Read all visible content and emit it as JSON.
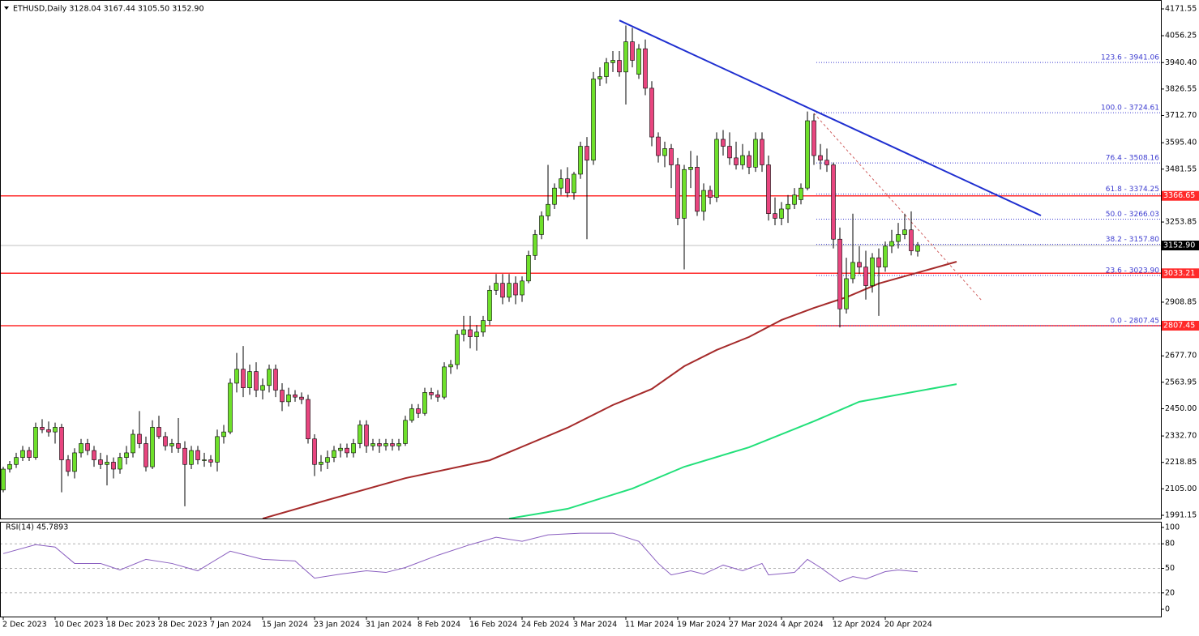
{
  "chart_data": {
    "type": "candlestick",
    "title": "ETHUSD,Daily  3128.04 3167.44 3105.50 3152.90",
    "categories": [
      "2 Dec 2023",
      null,
      null,
      null,
      null,
      null,
      null,
      null,
      "10 Dec 2023",
      null,
      null,
      null,
      null,
      null,
      null,
      null,
      "18 Dec 2023",
      null,
      null,
      null,
      null,
      null,
      null,
      null,
      "28 Dec 2023",
      null,
      null,
      null,
      null,
      null,
      null,
      null,
      "7 Jan 2024",
      null,
      null,
      null,
      null,
      null,
      null,
      null,
      "15 Jan 2024",
      null,
      null,
      null,
      null,
      null,
      null,
      null,
      "23 Jan 2024",
      null,
      null,
      null,
      null,
      null,
      null,
      null,
      "31 Jan 2024",
      null,
      null,
      null,
      null,
      null,
      null,
      null,
      "8 Feb 2024",
      null,
      null,
      null,
      null,
      null,
      null,
      null,
      "16 Feb 2024",
      null,
      null,
      null,
      null,
      null,
      null,
      null,
      "24 Feb 2024",
      null,
      null,
      null,
      null,
      null,
      null,
      null,
      "3 Mar 2024",
      null,
      null,
      null,
      null,
      null,
      null,
      null,
      "11 Mar 2024",
      null,
      null,
      null,
      null,
      null,
      null,
      null,
      "19 Mar 2024",
      null,
      null,
      null,
      null,
      null,
      null,
      null,
      "27 Mar 2024",
      null,
      null,
      null,
      null,
      null,
      null,
      null,
      "4 Apr 2024",
      null,
      null,
      null,
      null,
      null,
      null,
      null,
      "12 Apr 2024",
      null,
      null,
      null,
      null,
      null,
      null,
      null,
      "20 Apr 2024",
      null,
      null,
      null,
      null,
      null
    ],
    "candles": [
      [
        2100,
        2200,
        2090,
        2190
      ],
      [
        2190,
        2225,
        2175,
        2210
      ],
      [
        2210,
        2260,
        2195,
        2240
      ],
      [
        2240,
        2290,
        2225,
        2270
      ],
      [
        2270,
        2285,
        2225,
        2240
      ],
      [
        2240,
        2390,
        2230,
        2370
      ],
      [
        2370,
        2405,
        2345,
        2360
      ],
      [
        2360,
        2395,
        2330,
        2350
      ],
      [
        2350,
        2390,
        2300,
        2370
      ],
      [
        2370,
        2385,
        2090,
        2230
      ],
      [
        2230,
        2250,
        2160,
        2180
      ],
      [
        2180,
        2280,
        2150,
        2260
      ],
      [
        2260,
        2320,
        2240,
        2300
      ],
      [
        2300,
        2320,
        2250,
        2270
      ],
      [
        2270,
        2290,
        2200,
        2230
      ],
      [
        2230,
        2260,
        2190,
        2210
      ],
      [
        2210,
        2250,
        2120,
        2220
      ],
      [
        2220,
        2240,
        2150,
        2190
      ],
      [
        2190,
        2260,
        2170,
        2240
      ],
      [
        2240,
        2290,
        2210,
        2260
      ],
      [
        2260,
        2360,
        2240,
        2340
      ],
      [
        2340,
        2440,
        2280,
        2300
      ],
      [
        2300,
        2330,
        2180,
        2200
      ],
      [
        2200,
        2400,
        2190,
        2370
      ],
      [
        2370,
        2420,
        2320,
        2330
      ],
      [
        2330,
        2350,
        2270,
        2290
      ],
      [
        2290,
        2320,
        2260,
        2300
      ],
      [
        2300,
        2410,
        2260,
        2280
      ],
      [
        2280,
        2310,
        2030,
        2210
      ],
      [
        2210,
        2290,
        2190,
        2270
      ],
      [
        2270,
        2290,
        2210,
        2230
      ],
      [
        2230,
        2260,
        2200,
        2230
      ],
      [
        2230,
        2250,
        2200,
        2220
      ],
      [
        2220,
        2360,
        2180,
        2330
      ],
      [
        2330,
        2380,
        2300,
        2350
      ],
      [
        2350,
        2580,
        2340,
        2560
      ],
      [
        2560,
        2690,
        2520,
        2620
      ],
      [
        2620,
        2720,
        2500,
        2540
      ],
      [
        2540,
        2640,
        2510,
        2610
      ],
      [
        2610,
        2650,
        2500,
        2530
      ],
      [
        2530,
        2580,
        2490,
        2550
      ],
      [
        2550,
        2640,
        2520,
        2620
      ],
      [
        2620,
        2640,
        2500,
        2530
      ],
      [
        2530,
        2560,
        2440,
        2480
      ],
      [
        2480,
        2540,
        2460,
        2510
      ],
      [
        2510,
        2530,
        2480,
        2500
      ],
      [
        2500,
        2520,
        2470,
        2490
      ],
      [
        2490,
        2510,
        2300,
        2320
      ],
      [
        2320,
        2340,
        2160,
        2210
      ],
      [
        2210,
        2250,
        2180,
        2220
      ],
      [
        2220,
        2270,
        2190,
        2240
      ],
      [
        2240,
        2290,
        2220,
        2270
      ],
      [
        2270,
        2300,
        2240,
        2280
      ],
      [
        2280,
        2300,
        2240,
        2260
      ],
      [
        2260,
        2320,
        2240,
        2300
      ],
      [
        2300,
        2400,
        2280,
        2380
      ],
      [
        2380,
        2400,
        2260,
        2290
      ],
      [
        2290,
        2320,
        2270,
        2300
      ],
      [
        2300,
        2320,
        2260,
        2290
      ],
      [
        2290,
        2320,
        2270,
        2300
      ],
      [
        2300,
        2320,
        2270,
        2290
      ],
      [
        2290,
        2320,
        2270,
        2300
      ],
      [
        2300,
        2420,
        2290,
        2400
      ],
      [
        2400,
        2470,
        2390,
        2450
      ],
      [
        2450,
        2470,
        2410,
        2430
      ],
      [
        2430,
        2540,
        2420,
        2520
      ],
      [
        2520,
        2540,
        2490,
        2510
      ],
      [
        2510,
        2530,
        2480,
        2500
      ],
      [
        2500,
        2650,
        2490,
        2630
      ],
      [
        2630,
        2660,
        2600,
        2640
      ],
      [
        2640,
        2790,
        2620,
        2770
      ],
      [
        2770,
        2850,
        2740,
        2790
      ],
      [
        2790,
        2850,
        2710,
        2760
      ],
      [
        2760,
        2810,
        2700,
        2780
      ],
      [
        2780,
        2850,
        2760,
        2830
      ],
      [
        2830,
        2980,
        2810,
        2960
      ],
      [
        2960,
        3030,
        2940,
        2990
      ],
      [
        2990,
        3030,
        2900,
        2930
      ],
      [
        2930,
        3030,
        2910,
        2990
      ],
      [
        2990,
        3020,
        2900,
        2940
      ],
      [
        2940,
        3020,
        2910,
        3000
      ],
      [
        3000,
        3130,
        2990,
        3110
      ],
      [
        3110,
        3220,
        3090,
        3200
      ],
      [
        3200,
        3300,
        3180,
        3280
      ],
      [
        3280,
        3500,
        3260,
        3330
      ],
      [
        3330,
        3420,
        3310,
        3400
      ],
      [
        3400,
        3480,
        3370,
        3440
      ],
      [
        3440,
        3490,
        3360,
        3380
      ],
      [
        3380,
        3470,
        3350,
        3460
      ],
      [
        3460,
        3600,
        3440,
        3580
      ],
      [
        3580,
        3620,
        3180,
        3520
      ],
      [
        3520,
        3900,
        3500,
        3870
      ],
      [
        3870,
        3920,
        3840,
        3880
      ],
      [
        3880,
        3960,
        3850,
        3940
      ],
      [
        3940,
        3990,
        3900,
        3950
      ],
      [
        3950,
        3990,
        3880,
        3900
      ],
      [
        3900,
        4100,
        3760,
        4030
      ],
      [
        4030,
        4090,
        3920,
        3950
      ],
      [
        3890,
        4020,
        3870,
        4000
      ],
      [
        4000,
        4040,
        3800,
        3830
      ],
      [
        3830,
        3860,
        3580,
        3620
      ],
      [
        3620,
        3640,
        3510,
        3540
      ],
      [
        3540,
        3600,
        3490,
        3570
      ],
      [
        3570,
        3590,
        3400,
        3500
      ],
      [
        3500,
        3530,
        3240,
        3270
      ],
      [
        3270,
        3500,
        3050,
        3480
      ],
      [
        3480,
        3560,
        3400,
        3490
      ],
      [
        3490,
        3540,
        3280,
        3300
      ],
      [
        3300,
        3420,
        3260,
        3390
      ],
      [
        3390,
        3410,
        3330,
        3360
      ],
      [
        3360,
        3640,
        3340,
        3610
      ],
      [
        3610,
        3650,
        3540,
        3580
      ],
      [
        3580,
        3640,
        3500,
        3530
      ],
      [
        3530,
        3600,
        3480,
        3500
      ],
      [
        3500,
        3590,
        3480,
        3540
      ],
      [
        3540,
        3560,
        3460,
        3490
      ],
      [
        3490,
        3640,
        3470,
        3610
      ],
      [
        3610,
        3640,
        3470,
        3500
      ],
      [
        3500,
        3540,
        3260,
        3290
      ],
      [
        3290,
        3360,
        3240,
        3270
      ],
      [
        3270,
        3340,
        3240,
        3310
      ],
      [
        3310,
        3370,
        3250,
        3330
      ],
      [
        3330,
        3400,
        3310,
        3370
      ],
      [
        3350,
        3420,
        3330,
        3400
      ],
      [
        3400,
        3730,
        3390,
        3690
      ],
      [
        3690,
        3720,
        3500,
        3540
      ],
      [
        3540,
        3590,
        3480,
        3520
      ],
      [
        3520,
        3570,
        3470,
        3500
      ],
      [
        3500,
        3510,
        3140,
        3180
      ],
      [
        3180,
        3230,
        2800,
        2880
      ],
      [
        2880,
        3100,
        2860,
        3010
      ],
      [
        3010,
        3290,
        2990,
        3080
      ],
      [
        3080,
        3150,
        3030,
        3060
      ],
      [
        3060,
        3130,
        2920,
        2980
      ],
      [
        2980,
        3120,
        2950,
        3100
      ],
      [
        3100,
        3140,
        2850,
        3060
      ],
      [
        3060,
        3170,
        3040,
        3150
      ],
      [
        3150,
        3220,
        3120,
        3170
      ],
      [
        3170,
        3250,
        3140,
        3200
      ],
      [
        3200,
        3290,
        3180,
        3220
      ],
      [
        3220,
        3300,
        3110,
        3130
      ],
      [
        3128.04,
        3167.44,
        3105.5,
        3152.9
      ]
    ],
    "up_color": "#6ee02a",
    "down_color": "#e8457f",
    "ylim": [
      1977.2,
      4209.9
    ],
    "yticks": [
      4171.55,
      4056.25,
      {
        "value": 3940.4,
        "label": "3940.40"
      },
      3826.55,
      {
        "value": 3712.7,
        "label": "3712.70"
      },
      {
        "value": 3595.4,
        "label": "3595.40"
      },
      3481.55,
      3253.85,
      2908.85,
      {
        "value": 2677.7,
        "label": "2677.70"
      },
      2563.95,
      {
        "value": 2450,
        "label": "2450.00"
      },
      {
        "value": 2332.7,
        "label": "2332.70"
      },
      2218.85,
      {
        "value": 2105,
        "label": "2105.00"
      },
      1991.15
    ],
    "moving_averages": [
      {
        "color": "#a52a2a",
        "x": [
          40,
          50,
          62,
          75,
          87,
          94,
          100,
          105,
          110,
          115,
          120,
          125,
          130,
          135,
          147
        ],
        "values": [
          1977,
          2057,
          2151,
          2228,
          2368,
          2466,
          2535,
          2633,
          2703,
          2759,
          2832,
          2884,
          2930,
          2989,
          3083
        ]
      },
      {
        "color": "#22e07a",
        "x": [
          78,
          87,
          97,
          105,
          115,
          125,
          132,
          147
        ],
        "values": [
          1977,
          2019,
          2106,
          2200,
          2284,
          2396,
          2480,
          2556
        ]
      }
    ],
    "trend_line": {
      "color": "#1f2fd0",
      "x": [
        95,
        160
      ],
      "values": [
        4122,
        3282
      ]
    },
    "projection": {
      "color": "#d06060",
      "x": [
        125,
        151
      ],
      "values": [
        3722,
        2912
      ]
    },
    "levels": {
      "color": "#ff2a2a",
      "values": [
        3366.65,
        3033.21,
        2807.45
      ]
    },
    "price_line": {
      "value": 3152.9,
      "label": "3152.90"
    },
    "fib_color": "#3b3bd0",
    "fib_levels": [
      {
        "value": 3941.06,
        "label": "123.6 - 3941.06"
      },
      {
        "value": 3724.61,
        "label": "100.0 - 3724.61"
      },
      {
        "value": 3508.16,
        "label": "76.4 - 3508.16"
      },
      {
        "value": 3374.25,
        "label": "61.8 - 3374.25"
      },
      {
        "value": 3266.03,
        "label": "50.0 - 3266.03"
      },
      {
        "value": 3157.8,
        "label": "38.2 - 3157.80"
      },
      {
        "value": 3023.9,
        "label": "23.6 - 3023.90"
      },
      {
        "value": 2807.45,
        "label": "0.0 - 2807.45"
      }
    ],
    "rsi": {
      "title": "RSI(14) 45.7893",
      "color": "#8a5fc0",
      "ylim": [
        0,
        100
      ],
      "yticks": [
        100,
        80,
        50,
        20,
        0
      ],
      "x": [
        0,
        5,
        8,
        11,
        15,
        18,
        22,
        26,
        30,
        35,
        40,
        45,
        48,
        52,
        56,
        59,
        62,
        67,
        72,
        76,
        80,
        84,
        89,
        94,
        98,
        101,
        103,
        106,
        108,
        111,
        114,
        117,
        118,
        122,
        124,
        126,
        129,
        131,
        133,
        136,
        138,
        141
      ],
      "values": [
        68,
        79,
        76,
        56,
        56,
        48,
        61,
        56,
        47,
        71,
        61,
        59,
        38,
        43,
        47,
        45,
        51,
        66,
        79,
        88,
        83,
        91,
        93,
        93,
        83,
        56,
        42,
        47,
        43,
        54,
        47,
        56,
        42,
        45,
        61,
        51,
        34,
        40,
        37,
        46,
        48,
        45.79
      ]
    }
  }
}
